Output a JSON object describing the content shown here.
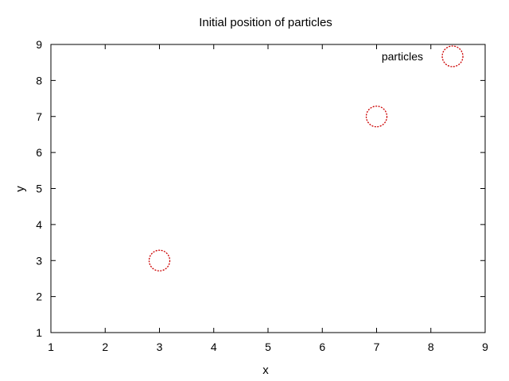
{
  "chart_data": {
    "type": "scatter",
    "title": "Initial position of particles",
    "xlabel": "x",
    "ylabel": "y",
    "xlim": [
      1,
      9
    ],
    "ylim": [
      1,
      9
    ],
    "xticks": [
      1,
      2,
      3,
      4,
      5,
      6,
      7,
      8,
      9
    ],
    "yticks": [
      1,
      2,
      3,
      4,
      5,
      6,
      7,
      8,
      9
    ],
    "grid": false,
    "legend_position": "top-right",
    "series": [
      {
        "name": "particles",
        "color": "#cc0000",
        "marker": "circle-open-dotted",
        "points": [
          {
            "x": 3,
            "y": 3
          },
          {
            "x": 7,
            "y": 7
          }
        ]
      }
    ],
    "legend_marker_point": {
      "x": 8.4,
      "y": 8.67
    }
  }
}
